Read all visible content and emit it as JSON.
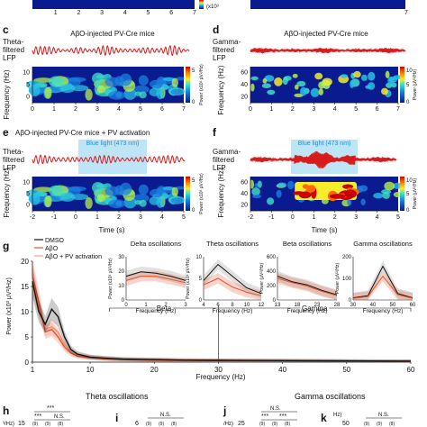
{
  "colors": {
    "lfp_red": "#d81b1b",
    "blue_light": "#a8dcf3",
    "blue_light_text": "#1e8fd6",
    "dmso": "#111111",
    "abo": "#e2532d",
    "abo_pv": "#f2a07e",
    "heatmap_low": "#0a1a8f",
    "heatmap_high": "#d00000"
  },
  "panels": {
    "top_strip": {
      "ticks": [
        "1",
        "2",
        "3",
        "4",
        "5",
        "6",
        "7"
      ],
      "tick_right": "7",
      "cbar_hint": "(x10³"
    },
    "c": {
      "letter": "c",
      "title": "AβO-injected PV-Cre mice",
      "trace_label": [
        "Theta-",
        "filtered",
        "LFP"
      ],
      "ylabel": "Frequency (Hz)",
      "yticks": [
        "0",
        "5",
        "10"
      ],
      "xticks": [
        "0",
        "1",
        "2",
        "3",
        "4",
        "5",
        "6",
        "7"
      ],
      "cbar_label": "Power (x10³ μV²/Hz)",
      "cbar_ticks": [
        "5",
        "0"
      ]
    },
    "d": {
      "letter": "d",
      "title": "AβO-injected PV-Cre mice",
      "trace_label": [
        "Gamma-",
        "filtered",
        "LFP"
      ],
      "ylabel": "Frequency (Hz)",
      "yticks": [
        "20",
        "40",
        "60"
      ],
      "xticks": [
        "0",
        "1",
        "2",
        "3",
        "4",
        "5",
        "6",
        "7"
      ],
      "cbar_label": "Power (μV²/Hz)",
      "cbar_ticks": [
        "10",
        "5",
        "0"
      ]
    },
    "e": {
      "letter": "e",
      "title": "AβO-injected PV-Cre mice + PV activation",
      "blue_light": "Blue light (473 nm)",
      "trace_label": [
        "Theta-",
        "filtered",
        "LFP"
      ],
      "ylabel": "Frequency (Hz)",
      "yticks": [
        "0",
        "5",
        "10"
      ],
      "xticks": [
        "-2",
        "-1",
        "0",
        "1",
        "2",
        "3",
        "4",
        "5"
      ],
      "xlabel": "Time (s)",
      "cbar_label": "Power (x10³ μV²/Hz)",
      "cbar_ticks": [
        "5",
        "0"
      ]
    },
    "f": {
      "letter": "f",
      "blue_light": "Blue light (473 nm)",
      "trace_label": [
        "Gamma-",
        "filtered",
        "LFP"
      ],
      "ylabel": "Frequency (Hz)",
      "yticks": [
        "20",
        "40",
        "60"
      ],
      "xticks": [
        "-2",
        "-1",
        "0",
        "1",
        "2",
        "3",
        "4",
        "5"
      ],
      "xlabel": "Time (s)",
      "cbar_label": "Power (μV²/Hz)",
      "cbar_ticks": [
        "10",
        "5",
        "0"
      ]
    },
    "g": {
      "letter": "g",
      "legend": [
        "DMSO",
        "AβO",
        "AβO + PV activation"
      ],
      "ylabel": "Power (x10³ μV²/Hz)",
      "yticks": [
        "0",
        "5",
        "10",
        "15",
        "20"
      ],
      "xticks": [
        "1",
        "10",
        "20",
        "30",
        "40",
        "50",
        "60"
      ],
      "xlabel": "Frequency (Hz)",
      "band_beta": "Beta",
      "band_gamma": "Gamma",
      "insets": [
        {
          "title": "Delta oscillations",
          "ylabel": "Power (x10³ μV²/Hz)",
          "yticks": [
            "0",
            "10",
            "20",
            "30"
          ],
          "xticks": [
            "0",
            "1",
            "2",
            "3"
          ],
          "xlabel": "Frequency (Hz)"
        },
        {
          "title": "Theta oscillations",
          "ylabel": "Power (x10³ μV²/Hz)",
          "yticks": [
            "0",
            "5",
            "10"
          ],
          "xticks": [
            "4",
            "6",
            "8",
            "10",
            "12"
          ],
          "xlabel": "Frequency (Hz)"
        },
        {
          "title": "Beta oscillations",
          "ylabel": "Power (μV²/Hz)",
          "yticks": [
            "0",
            "200",
            "400",
            "600"
          ],
          "xticks": [
            "13",
            "18",
            "23",
            "28"
          ],
          "xlabel": "Frequency (Hz)"
        },
        {
          "title": "Gamma oscillations",
          "ylabel": "Power (μV²/Hz)",
          "yticks": [
            "0",
            "100",
            "200"
          ],
          "xticks": [
            "30",
            "40",
            "50",
            "60"
          ],
          "xlabel": "Frequency (Hz)"
        }
      ]
    },
    "bottom": {
      "h": {
        "letter": "h",
        "ylabel_fragment": "³/Hz)",
        "ytick": "15"
      },
      "theta_title": "Theta oscillations",
      "gamma_title": "Gamma oscillations",
      "i": {
        "letter": "i",
        "ytick": "6"
      },
      "j": {
        "letter": "j",
        "ylabel_fragment": "/Hz)",
        "ytick": "25"
      },
      "k": {
        "letter": "k",
        "ylabel_fragment": "Hz)",
        "ytick": "50"
      },
      "sig_h": [
        "***",
        "***",
        "N.S."
      ],
      "sig_i": "N.S.",
      "sig_j": [
        "N.S.",
        "***",
        "***"
      ],
      "sig_k": "N.S.",
      "n_labels": [
        "(9)",
        "(9)",
        "(8)"
      ]
    }
  },
  "chart_data": {
    "type": "line",
    "title": "",
    "xlabel": "Frequency (Hz)",
    "ylabel": "Power (x10³ μV²/Hz)",
    "xlim": [
      1,
      60
    ],
    "ylim": [
      0,
      20
    ],
    "legend_position": "top-left",
    "series": [
      {
        "name": "DMSO",
        "x": [
          1,
          2,
          3,
          4,
          5,
          6,
          7,
          8,
          10,
          12,
          15,
          20,
          25,
          30,
          40,
          50,
          60
        ],
        "y": [
          16,
          10,
          7.5,
          10.5,
          9,
          5,
          2.5,
          1.6,
          1.0,
          0.8,
          0.6,
          0.5,
          0.4,
          0.35,
          0.3,
          0.25,
          0.2
        ]
      },
      {
        "name": "AβO",
        "x": [
          1,
          2,
          3,
          4,
          5,
          6,
          7,
          8,
          10,
          12,
          15,
          20,
          25,
          30,
          40,
          50,
          60
        ],
        "y": [
          17,
          12,
          6,
          6.5,
          5,
          3,
          1.8,
          1.2,
          0.9,
          0.7,
          0.5,
          0.4,
          0.35,
          0.3,
          0.25,
          0.2,
          0.2
        ]
      },
      {
        "name": "AβO + PV activation",
        "x": [
          1,
          2,
          3,
          4,
          5,
          6,
          7,
          8,
          10,
          12,
          15,
          20,
          25,
          30,
          40,
          50,
          60
        ],
        "y": [
          16.5,
          11,
          6.5,
          7,
          6,
          3.5,
          2,
          1.4,
          1.0,
          0.8,
          0.6,
          0.45,
          0.4,
          0.35,
          0.3,
          0.25,
          0.2
        ]
      }
    ]
  }
}
